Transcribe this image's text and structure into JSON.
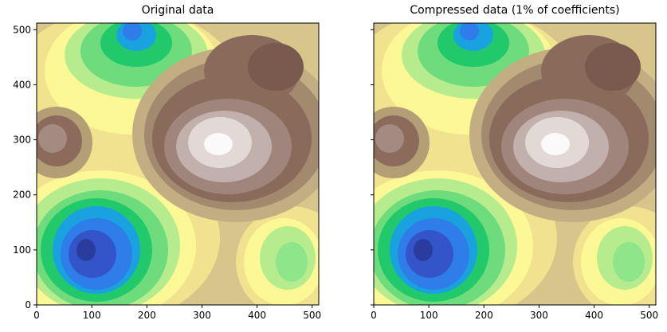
{
  "chart_data": [
    {
      "type": "contour",
      "title": "Original data",
      "xlim": [
        0,
        512
      ],
      "ylim": [
        0,
        512
      ],
      "xticks": [
        0,
        100,
        200,
        300,
        400,
        500
      ],
      "yticks": [
        0,
        100,
        200,
        300,
        400,
        500
      ],
      "ytick_labels": true
    },
    {
      "type": "contour",
      "title": "Compressed data (1% of coefficients)",
      "xlim": [
        0,
        512
      ],
      "ylim": [
        0,
        512
      ],
      "xticks": [
        0,
        100,
        200,
        300,
        400,
        500
      ],
      "yticks": [
        0,
        100,
        200,
        300,
        400,
        500
      ],
      "ytick_labels": false
    }
  ]
}
